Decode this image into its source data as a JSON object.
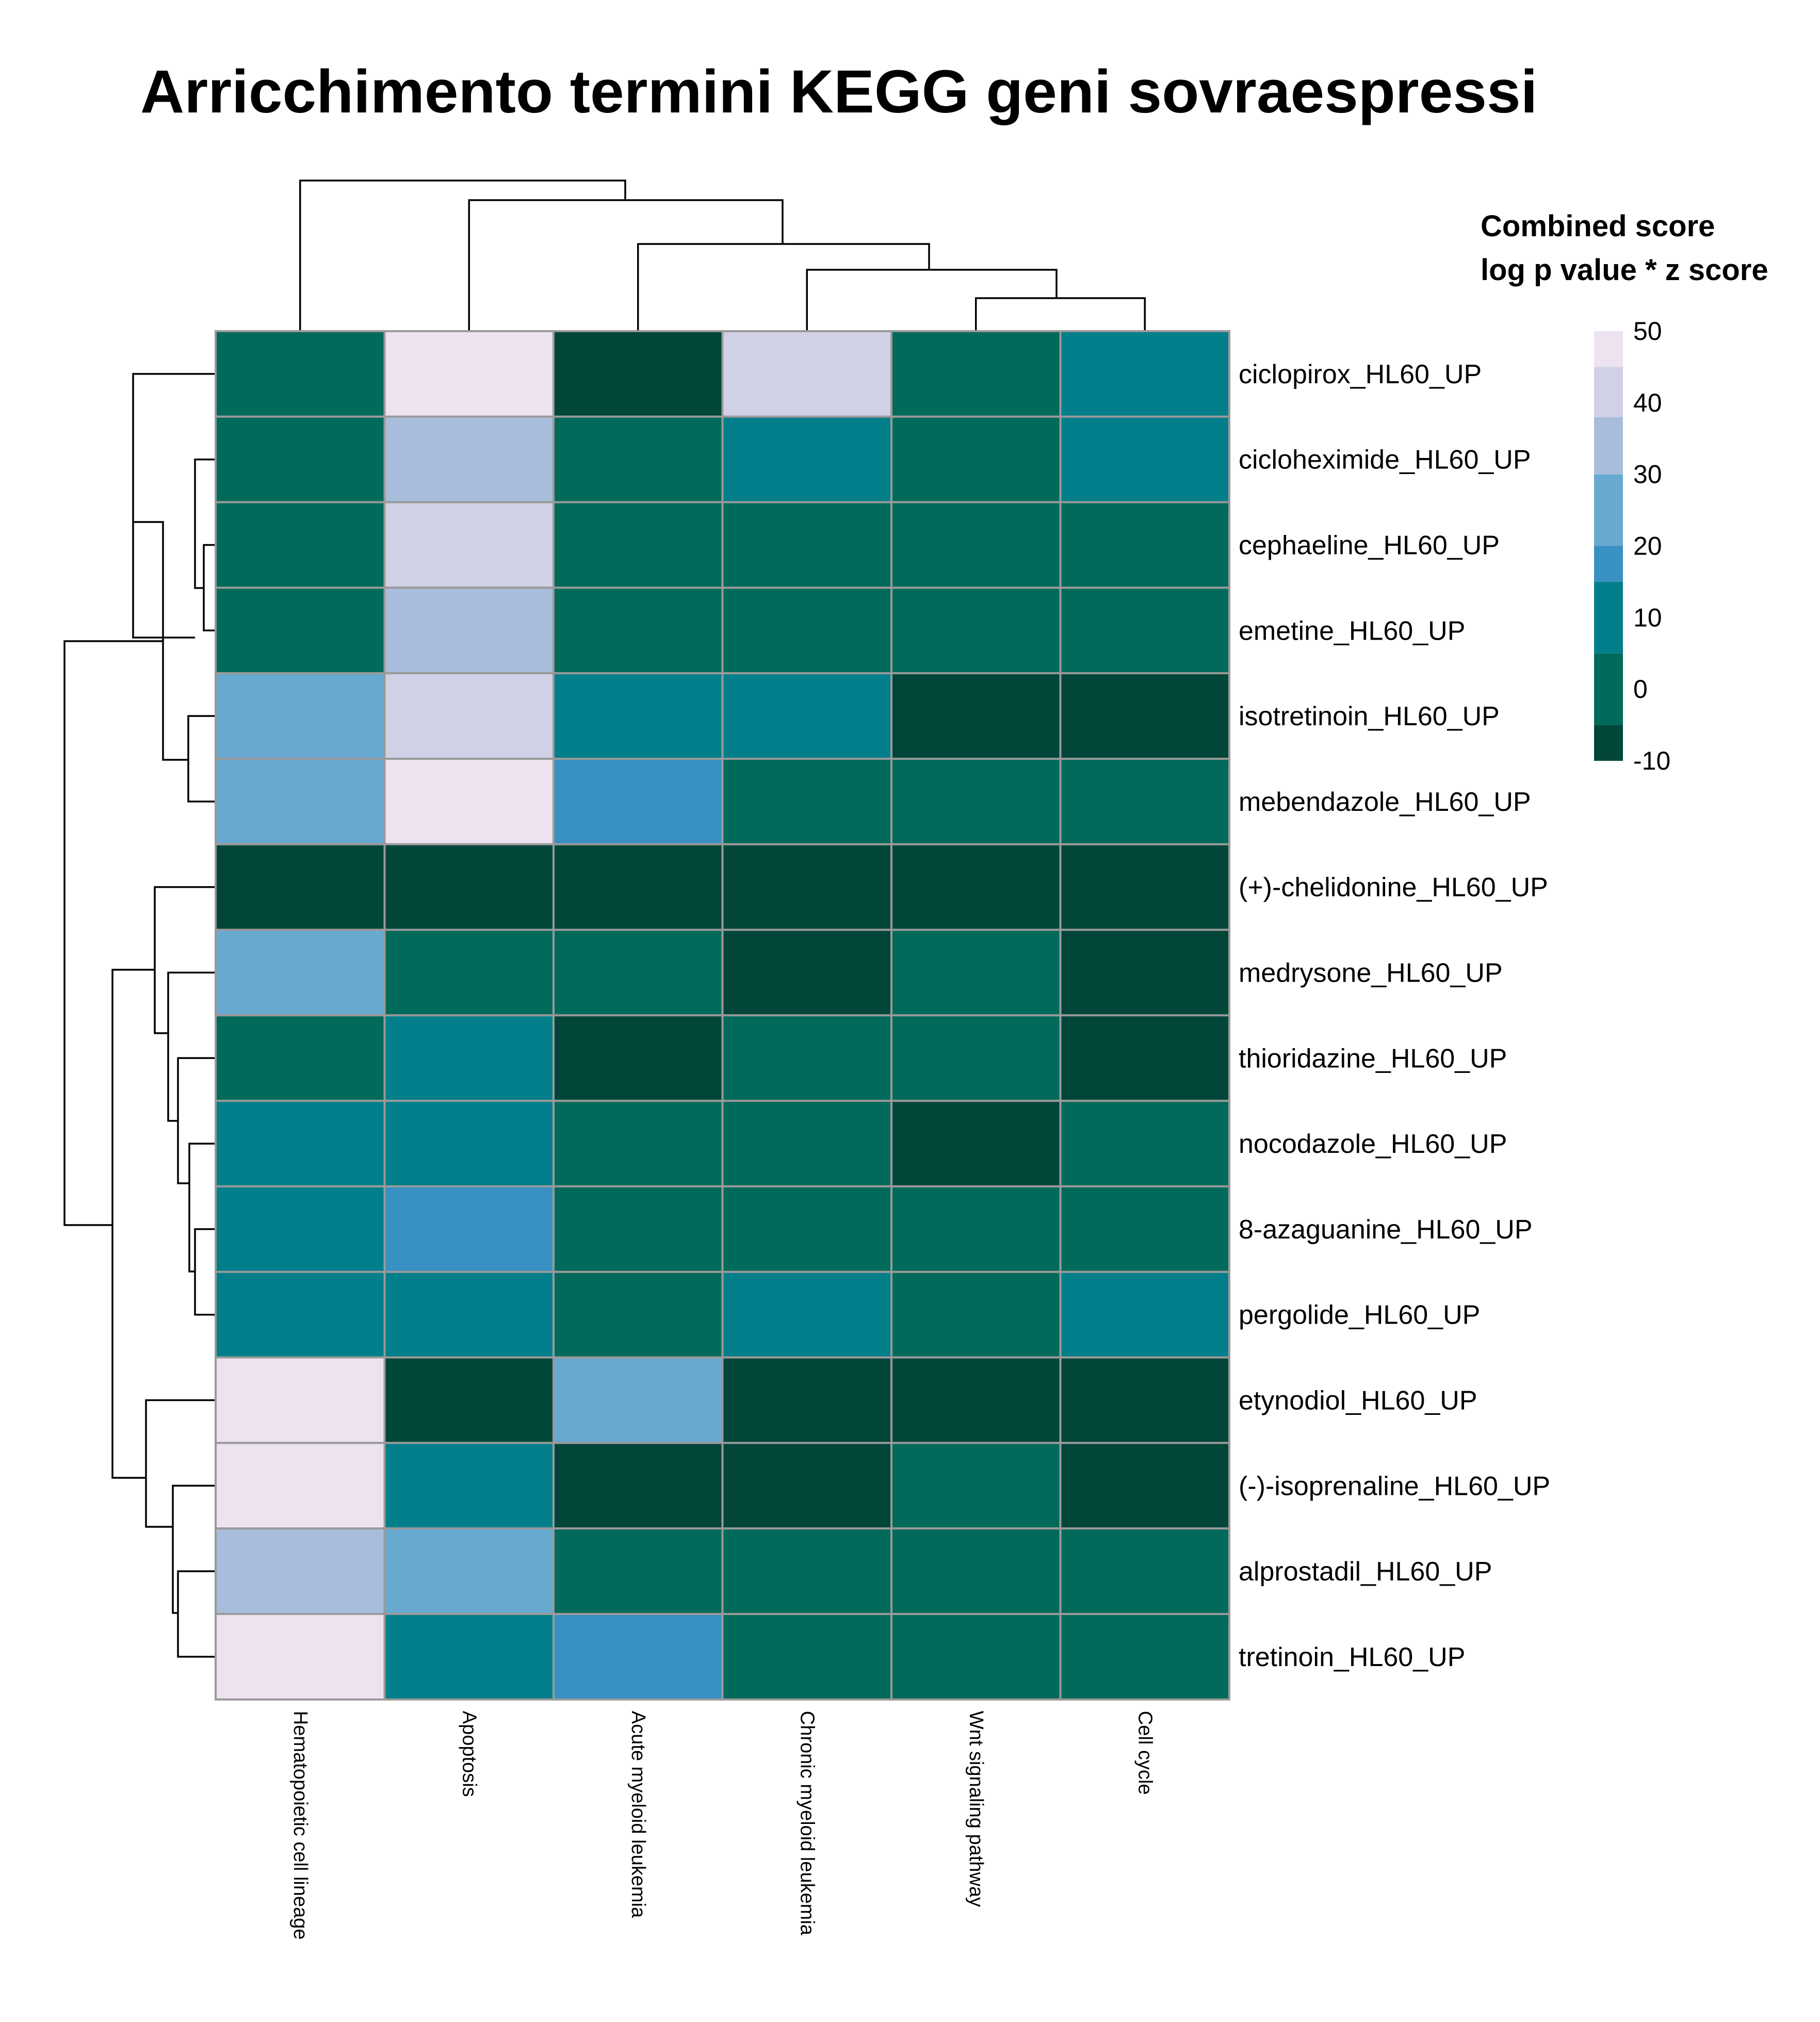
{
  "chart_data": {
    "type": "heatmap",
    "title": "Arricchimento termini KEGG geni sovraespressi",
    "columns": [
      "Hematopoietic cell lineage",
      "Apoptosis",
      "Acute myeloid leukemia",
      "Chronic myeloid leukemia",
      "Wnt signaling pathway",
      "Cell cycle"
    ],
    "rows": [
      "ciclopirox_HL60_UP",
      "cicloheximide_HL60_UP",
      "cephaeline_HL60_UP",
      "emetine_HL60_UP",
      "isotretinoin_HL60_UP",
      "mebendazole_HL60_UP",
      "(+)-chelidonine_HL60_UP",
      "medrysone_HL60_UP",
      "thioridazine_HL60_UP",
      "nocodazole_HL60_UP",
      "8-azaguanine_HL60_UP",
      "pergolide_HL60_UP",
      "etynodiol_HL60_UP",
      "(-)-isoprenaline_HL60_UP",
      "alprostadil_HL60_UP",
      "tretinoin_HL60_UP"
    ],
    "values": [
      [
        3,
        47,
        -8,
        40,
        3,
        12
      ],
      [
        3,
        33,
        3,
        12,
        3,
        12
      ],
      [
        3,
        40,
        3,
        3,
        3,
        3
      ],
      [
        3,
        33,
        3,
        3,
        3,
        3
      ],
      [
        25,
        40,
        12,
        12,
        -8,
        -8
      ],
      [
        25,
        47,
        18,
        3,
        3,
        3
      ],
      [
        -8,
        -8,
        -8,
        -8,
        -8,
        -8
      ],
      [
        25,
        3,
        3,
        -8,
        3,
        -8
      ],
      [
        3,
        12,
        -8,
        3,
        3,
        -8
      ],
      [
        12,
        12,
        3,
        3,
        -8,
        3
      ],
      [
        12,
        18,
        3,
        3,
        3,
        3
      ],
      [
        12,
        12,
        3,
        12,
        3,
        12
      ],
      [
        47,
        -8,
        25,
        -8,
        -8,
        -8
      ],
      [
        47,
        12,
        -8,
        -8,
        3,
        -8
      ],
      [
        33,
        25,
        3,
        3,
        3,
        3
      ],
      [
        47,
        12,
        18,
        3,
        3,
        3
      ]
    ],
    "legend": {
      "title_line1": "Combined score",
      "title_line2": "log p value * z score",
      "ticks": [
        "50",
        "40",
        "30",
        "20",
        "10",
        "0",
        "-10"
      ],
      "range": [
        -10,
        50
      ],
      "bins": [
        {
          "min": -10,
          "max": -5,
          "color": "#02463a"
        },
        {
          "min": -5,
          "max": 5,
          "color": "#026a5a"
        },
        {
          "min": 5,
          "max": 15,
          "color": "#027f8a"
        },
        {
          "min": 15,
          "max": 20,
          "color": "#3990c2"
        },
        {
          "min": 20,
          "max": 30,
          "color": "#68a9d0"
        },
        {
          "min": 30,
          "max": 38,
          "color": "#a7bddb"
        },
        {
          "min": 38,
          "max": 45,
          "color": "#d0d1e6"
        },
        {
          "min": 45,
          "max": 50,
          "color": "#ece2f0"
        }
      ]
    },
    "col_dendrogram": "((Hematopoietic cell lineage), (Apoptosis, (Acute myeloid leukemia, (Chronic myeloid leukemia, (Wnt signaling pathway, Cell cycle)))))",
    "row_dendrogram": "(((ciclopirox, (cicloheximide, (cephaeline, emetine))), (isotretinoin, mebendazole)), (((+)-chelidonine, (medrysone, (thioridazine, (nocodazole, (8-azaguanine, pergolide))))), (etynodiol, ((-)-isoprenaline, (alprostadil, tretinoin)))))"
  }
}
